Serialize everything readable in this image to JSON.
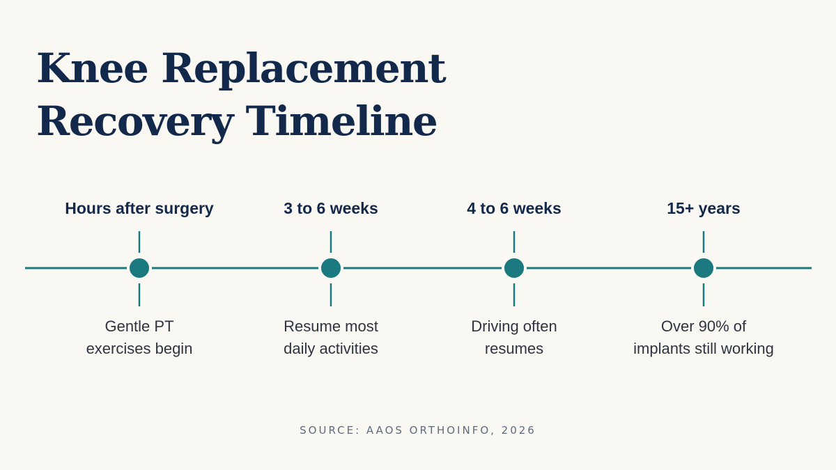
{
  "title": [
    "Knee Replacement",
    "Recovery Timeline"
  ],
  "milestones": [
    {
      "label": "Hours after surgery",
      "description": [
        "Gentle PT",
        "exercises begin"
      ]
    },
    {
      "label": "3 to 6 weeks",
      "description": [
        "Resume most",
        "daily activities"
      ]
    },
    {
      "label": "4 to 6 weeks",
      "description": [
        "Driving often",
        "resumes"
      ]
    },
    {
      "label": "15+ years",
      "description": [
        "Over 90% of",
        "implants still working"
      ]
    }
  ],
  "source": "SOURCE: AAOS ORTHOINFO, 2026"
}
